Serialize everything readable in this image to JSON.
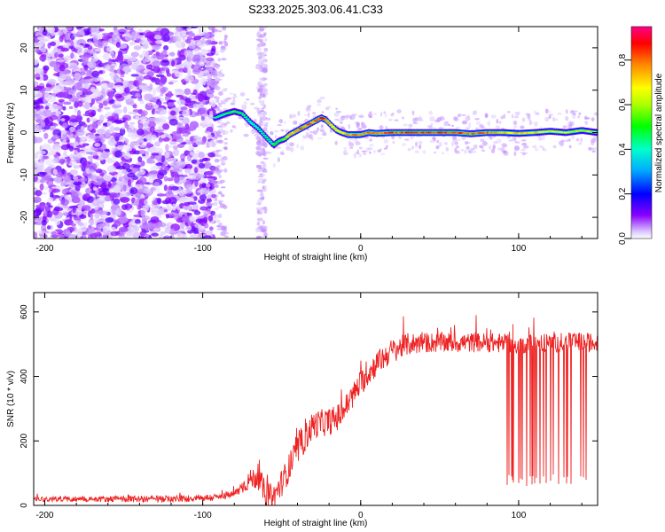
{
  "title": "S233.2025.303.06.41.C33",
  "chart_data": [
    {
      "type": "heatmap",
      "name": "spectrogram",
      "xlabel": "Height of straight line (km)",
      "ylabel": "Frequency (Hz)",
      "xlim": [
        -207,
        150
      ],
      "ylim": [
        -25,
        25
      ],
      "xticks": [
        -200,
        -100,
        0,
        100
      ],
      "yticks": [
        -20,
        -10,
        0,
        10,
        20
      ],
      "colorbar": {
        "label": "Normalized spectral amplitude",
        "range": [
          0,
          0.95
        ],
        "ticks": [
          "0.0",
          "0.2",
          "0.4",
          "0.6",
          "0.8"
        ],
        "tick_values": [
          0,
          0.2,
          0.4,
          0.6,
          0.8
        ]
      },
      "noise_region_x": [
        -207,
        -92
      ],
      "signal_ridge": {
        "x": [
          -92,
          -85,
          -80,
          -75,
          -70,
          -65,
          -60,
          -55,
          -52,
          -48,
          -45,
          -40,
          -35,
          -30,
          -25,
          -22,
          -18,
          -15,
          -12,
          -8,
          -5,
          0,
          5,
          10,
          20,
          30,
          40,
          50,
          60,
          70,
          80,
          90,
          100,
          110,
          120,
          130,
          140,
          150
        ],
        "frequency_hz": [
          3.5,
          4.5,
          5.0,
          4.5,
          2.5,
          1.0,
          -1.0,
          -3.0,
          -2.0,
          -1.5,
          -0.5,
          0.5,
          1.5,
          2.5,
          3.5,
          3.0,
          1.5,
          0.5,
          0.0,
          -0.5,
          -0.5,
          -0.5,
          0.0,
          -0.2,
          0.0,
          0.0,
          0.0,
          0.0,
          0.0,
          -0.3,
          0.0,
          0.0,
          -0.2,
          0.0,
          0.3,
          0.0,
          0.5,
          0.0
        ],
        "amplitude": [
          0.45,
          0.5,
          0.55,
          0.5,
          0.45,
          0.45,
          0.45,
          0.5,
          0.5,
          0.6,
          0.75,
          0.85,
          0.85,
          0.85,
          0.9,
          0.85,
          0.75,
          0.7,
          0.7,
          0.8,
          0.85,
          0.85,
          0.85,
          0.85,
          0.9,
          0.9,
          0.9,
          0.9,
          0.9,
          0.85,
          0.85,
          0.8,
          0.75,
          0.75,
          0.7,
          0.7,
          0.65,
          0.65
        ]
      }
    },
    {
      "type": "line",
      "name": "snr",
      "xlabel": "Height of straight line (km)",
      "ylabel": "SNR (10 * v/v)",
      "xlim": [
        -207,
        150
      ],
      "ylim": [
        0,
        660
      ],
      "xticks": [
        -200,
        -100,
        0,
        100
      ],
      "yticks": [
        0,
        200,
        400,
        600
      ],
      "color": "#ee2222",
      "trend": {
        "x": [
          -207,
          -120,
          -90,
          -80,
          -70,
          -65,
          -60,
          -55,
          -50,
          -45,
          -40,
          -35,
          -30,
          -25,
          -20,
          -15,
          -10,
          -5,
          0,
          5,
          10,
          15,
          20,
          25,
          30,
          40,
          60,
          80,
          100,
          120,
          150
        ],
        "y": [
          20,
          20,
          25,
          35,
          80,
          90,
          30,
          25,
          70,
          120,
          170,
          210,
          250,
          255,
          260,
          270,
          300,
          340,
          380,
          410,
          440,
          460,
          480,
          490,
          500,
          505,
          505,
          505,
          500,
          505,
          505
        ]
      },
      "noise_amplitude": {
        "x": [
          -207,
          -80,
          -65,
          -40,
          0,
          20,
          40,
          90,
          150
        ],
        "y": [
          8,
          12,
          40,
          45,
          40,
          38,
          32,
          30,
          30
        ]
      },
      "dropouts": {
        "x_range": [
          92,
          148
        ],
        "count": 32,
        "min_y": [
          60,
          100
        ]
      }
    }
  ]
}
